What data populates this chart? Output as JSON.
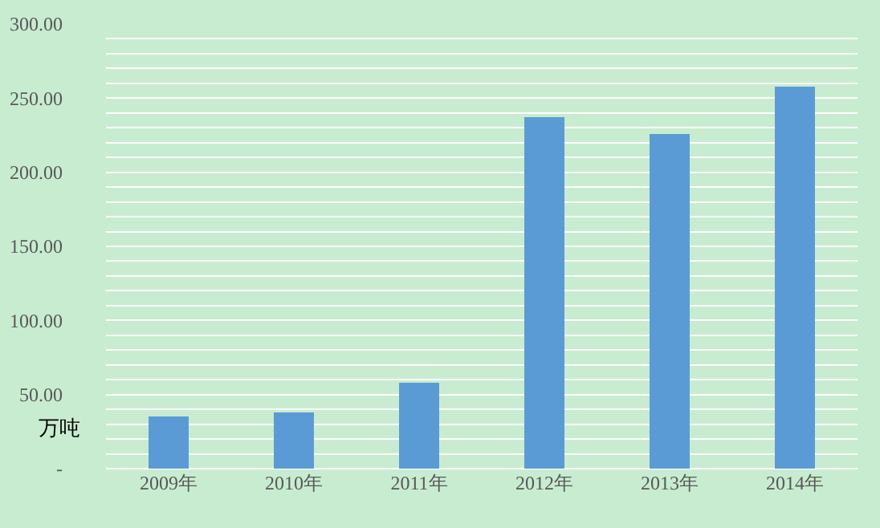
{
  "chart_data": {
    "type": "bar",
    "ylabel": "万吨",
    "categories": [
      "2009年",
      "2010年",
      "2011年",
      "2012年",
      "2013年",
      "2014年"
    ],
    "values": [
      35,
      38,
      58,
      237,
      226,
      258
    ],
    "color": "#5b9bd5",
    "ylim": [
      0,
      300
    ],
    "yticks": [
      {
        "value": 0,
        "label": "-"
      },
      {
        "value": 10,
        "label": null
      },
      {
        "value": 20,
        "label": null
      },
      {
        "value": 30,
        "label": null
      },
      {
        "value": 40,
        "label": null
      },
      {
        "value": 50,
        "label": "50.00"
      },
      {
        "value": 60,
        "label": null
      },
      {
        "value": 70,
        "label": null
      },
      {
        "value": 80,
        "label": null
      },
      {
        "value": 90,
        "label": null
      },
      {
        "value": 100,
        "label": "100.00"
      },
      {
        "value": 110,
        "label": null
      },
      {
        "value": 120,
        "label": null
      },
      {
        "value": 130,
        "label": null
      },
      {
        "value": 140,
        "label": null
      },
      {
        "value": 150,
        "label": "150.00"
      },
      {
        "value": 160,
        "label": null
      },
      {
        "value": 170,
        "label": null
      },
      {
        "value": 180,
        "label": null
      },
      {
        "value": 190,
        "label": null
      },
      {
        "value": 200,
        "label": "200.00"
      },
      {
        "value": 210,
        "label": null
      },
      {
        "value": 220,
        "label": null
      },
      {
        "value": 230,
        "label": null
      },
      {
        "value": 240,
        "label": null
      },
      {
        "value": 250,
        "label": "250.00"
      },
      {
        "value": 260,
        "label": null
      },
      {
        "value": 270,
        "label": null
      },
      {
        "value": 280,
        "label": null
      },
      {
        "value": 290,
        "label": null
      },
      {
        "value": 300,
        "label": "300.00"
      }
    ],
    "grid": true
  }
}
